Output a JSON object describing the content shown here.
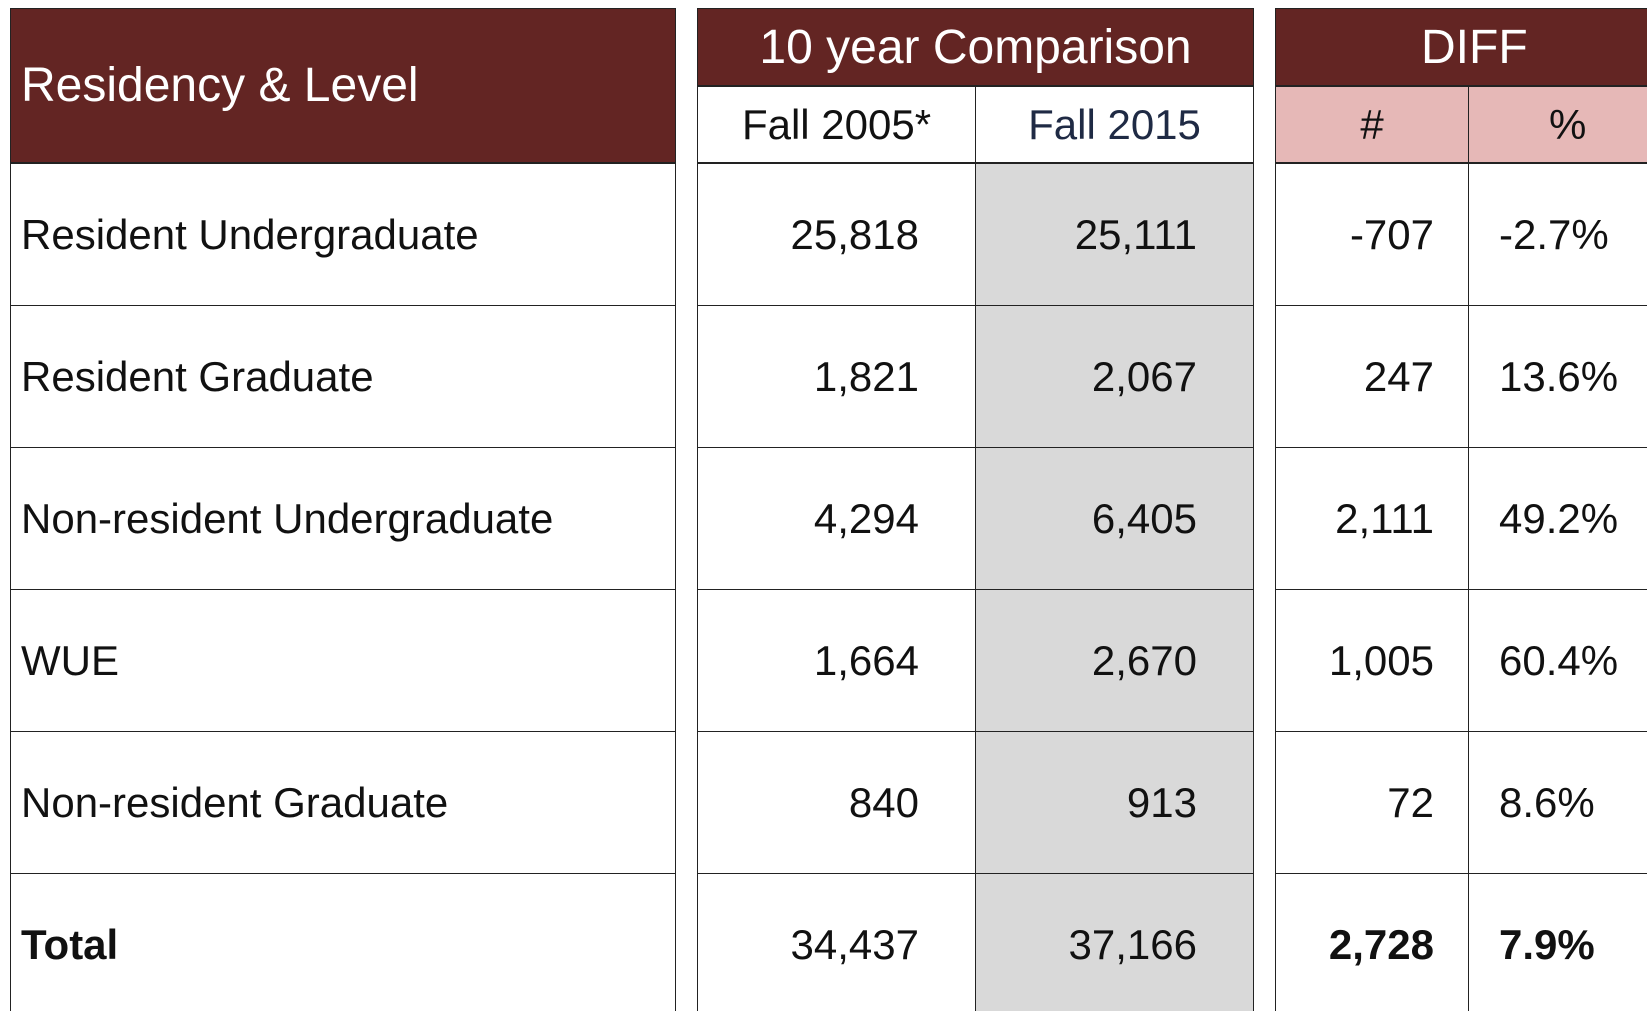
{
  "header": {
    "title": "Residency & Level",
    "comparison": "10 year Comparison",
    "fall_2005": "Fall 2005*",
    "fall_2015": "Fall 2015",
    "diff": "DIFF",
    "diff_number": "#",
    "diff_percent": "%"
  },
  "rows": [
    [
      "Resident Undergraduate",
      "25,818",
      "25,111",
      "-707",
      "-2.7%"
    ],
    [
      "Resident Graduate",
      "1,821",
      "2,067",
      "247",
      "13.6%"
    ],
    [
      "Non-resident Undergraduate",
      "4,294",
      "6,405",
      "2,111",
      "49.2%"
    ],
    [
      "WUE",
      "1,664",
      "2,670",
      "1,005",
      "60.4%"
    ],
    [
      "Non-resident Graduate",
      "840",
      "913",
      "72",
      "8.6%"
    ],
    [
      "Total",
      "34,437",
      "37,166",
      "2,728",
      "7.9%"
    ]
  ]
}
